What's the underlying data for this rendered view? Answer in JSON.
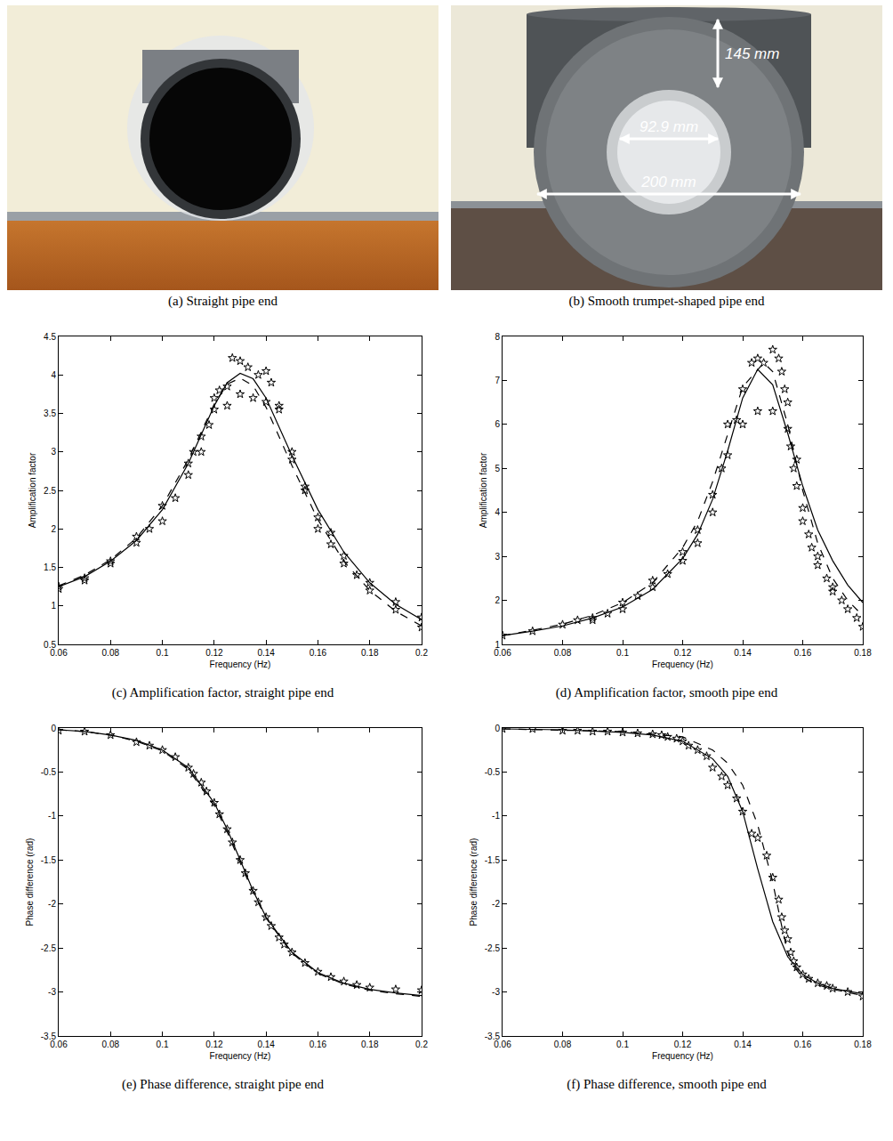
{
  "figure_panels": [
    {
      "caption": "(a) Straight pipe end"
    },
    {
      "caption": "(b) Smooth trumpet-shaped pipe end",
      "dimension_labels": [
        "145 mm",
        "92.9 mm",
        "200 mm"
      ]
    }
  ],
  "chart_data": [
    {
      "type": "line",
      "title": "(c) Amplification factor, straight pipe end",
      "x_label": "Frequency (Hz)",
      "y_label": "Amplification factor",
      "xlim": [
        0.06,
        0.2
      ],
      "xticks": [
        0.06,
        0.08,
        0.1,
        0.12,
        0.14,
        0.16,
        0.18,
        0.2
      ],
      "ylim": [
        0.5,
        4.5
      ],
      "yticks": [
        0.5,
        1,
        1.5,
        2,
        2.5,
        3,
        3.5,
        4,
        4.5
      ],
      "grid": false,
      "series": [
        {
          "type": "scatter",
          "marker": "star",
          "color": "#000000",
          "x": [
            0.06,
            0.06,
            0.07,
            0.07,
            0.08,
            0.08,
            0.09,
            0.09,
            0.095,
            0.1,
            0.1,
            0.105,
            0.11,
            0.11,
            0.112,
            0.115,
            0.115,
            0.118,
            0.12,
            0.12,
            0.122,
            0.125,
            0.125,
            0.127,
            0.13,
            0.13,
            0.133,
            0.135,
            0.137,
            0.14,
            0.14,
            0.142,
            0.145,
            0.145,
            0.15,
            0.15,
            0.155,
            0.155,
            0.16,
            0.16,
            0.165,
            0.165,
            0.17,
            0.17,
            0.175,
            0.18,
            0.18,
            0.19,
            0.19,
            0.2,
            0.2
          ],
          "values": [
            1.25,
            1.22,
            1.33,
            1.36,
            1.55,
            1.58,
            1.82,
            1.9,
            2.0,
            2.1,
            2.3,
            2.4,
            2.7,
            2.85,
            3.0,
            3.0,
            3.2,
            3.35,
            3.55,
            3.7,
            3.8,
            3.85,
            3.6,
            4.22,
            4.18,
            3.75,
            4.1,
            3.7,
            4.0,
            3.65,
            4.05,
            3.9,
            3.55,
            3.6,
            3.0,
            2.9,
            2.55,
            2.5,
            2.15,
            2.0,
            1.8,
            1.95,
            1.65,
            1.55,
            1.4,
            1.3,
            1.2,
            1.05,
            0.95,
            0.85,
            0.72
          ]
        },
        {
          "type": "line",
          "line_style": "solid",
          "color": "#000000",
          "x": [
            0.06,
            0.07,
            0.08,
            0.09,
            0.1,
            0.11,
            0.12,
            0.125,
            0.13,
            0.135,
            0.14,
            0.15,
            0.16,
            0.17,
            0.18,
            0.19,
            0.2
          ],
          "values": [
            1.25,
            1.38,
            1.58,
            1.85,
            2.25,
            2.85,
            3.6,
            3.9,
            4.02,
            3.95,
            3.7,
            2.95,
            2.25,
            1.7,
            1.3,
            1.02,
            0.82
          ]
        },
        {
          "type": "line",
          "line_style": "dashed",
          "color": "#000000",
          "x": [
            0.06,
            0.07,
            0.08,
            0.09,
            0.1,
            0.11,
            0.12,
            0.125,
            0.13,
            0.135,
            0.14,
            0.15,
            0.16,
            0.17,
            0.18,
            0.19,
            0.2
          ],
          "values": [
            1.26,
            1.4,
            1.6,
            1.88,
            2.3,
            2.9,
            3.62,
            3.88,
            3.96,
            3.86,
            3.58,
            2.82,
            2.12,
            1.58,
            1.2,
            0.93,
            0.74
          ]
        }
      ]
    },
    {
      "type": "line",
      "title": "(d) Amplification factor, smooth pipe end",
      "x_label": "Frequency (Hz)",
      "y_label": "Amplification factor",
      "xlim": [
        0.06,
        0.18
      ],
      "xticks": [
        0.06,
        0.08,
        0.1,
        0.12,
        0.14,
        0.16,
        0.18
      ],
      "ylim": [
        1,
        8
      ],
      "yticks": [
        1,
        2,
        3,
        4,
        5,
        6,
        7,
        8
      ],
      "grid": false,
      "series": [
        {
          "type": "scatter",
          "marker": "star",
          "color": "#000000",
          "x": [
            0.06,
            0.07,
            0.08,
            0.085,
            0.09,
            0.09,
            0.095,
            0.1,
            0.1,
            0.105,
            0.11,
            0.11,
            0.115,
            0.12,
            0.12,
            0.125,
            0.125,
            0.13,
            0.13,
            0.133,
            0.135,
            0.135,
            0.138,
            0.14,
            0.14,
            0.143,
            0.145,
            0.145,
            0.147,
            0.15,
            0.15,
            0.152,
            0.153,
            0.154,
            0.155,
            0.155,
            0.156,
            0.157,
            0.158,
            0.158,
            0.16,
            0.16,
            0.162,
            0.163,
            0.165,
            0.165,
            0.168,
            0.17,
            0.17,
            0.173,
            0.175,
            0.178,
            0.18
          ],
          "values": [
            1.2,
            1.3,
            1.45,
            1.55,
            1.6,
            1.55,
            1.7,
            1.8,
            1.95,
            2.1,
            2.3,
            2.45,
            2.6,
            2.9,
            3.1,
            3.3,
            3.6,
            4.0,
            4.4,
            5.0,
            5.3,
            6.0,
            6.1,
            6.8,
            6.0,
            7.4,
            6.3,
            7.5,
            7.4,
            6.3,
            7.7,
            7.5,
            7.2,
            6.8,
            6.5,
            5.9,
            5.5,
            5.0,
            4.6,
            5.2,
            4.1,
            3.8,
            3.5,
            3.2,
            3.0,
            2.8,
            2.5,
            2.3,
            2.2,
            2.0,
            1.8,
            1.6,
            1.4
          ]
        },
        {
          "type": "line",
          "line_style": "solid",
          "color": "#000000",
          "x": [
            0.06,
            0.07,
            0.08,
            0.09,
            0.1,
            0.11,
            0.12,
            0.125,
            0.13,
            0.135,
            0.14,
            0.145,
            0.15,
            0.155,
            0.16,
            0.165,
            0.17,
            0.175,
            0.18
          ],
          "values": [
            1.2,
            1.3,
            1.42,
            1.6,
            1.85,
            2.25,
            2.95,
            3.5,
            4.3,
            5.4,
            6.6,
            7.25,
            6.9,
            5.8,
            4.6,
            3.6,
            2.9,
            2.35,
            1.95
          ]
        },
        {
          "type": "line",
          "line_style": "dashed",
          "color": "#000000",
          "x": [
            0.06,
            0.07,
            0.08,
            0.09,
            0.1,
            0.11,
            0.12,
            0.125,
            0.13,
            0.135,
            0.14,
            0.147,
            0.15,
            0.155,
            0.16,
            0.165,
            0.17,
            0.175,
            0.18
          ],
          "values": [
            1.2,
            1.32,
            1.46,
            1.66,
            1.95,
            2.4,
            3.2,
            3.8,
            4.7,
            5.8,
            6.85,
            7.4,
            7.2,
            6.0,
            4.5,
            3.3,
            2.5,
            2.0,
            1.65
          ]
        }
      ]
    },
    {
      "type": "line",
      "title": "(e) Phase difference, straight pipe end",
      "x_label": "Frequency (Hz)",
      "y_label": "Phase difference (rad)",
      "xlim": [
        0.06,
        0.2
      ],
      "xticks": [
        0.06,
        0.08,
        0.1,
        0.12,
        0.14,
        0.16,
        0.18,
        0.2
      ],
      "ylim": [
        -3.5,
        0
      ],
      "yticks": [
        -3.5,
        -3,
        -2.5,
        -2,
        -1.5,
        -1,
        -0.5,
        0
      ],
      "grid": false,
      "series": [
        {
          "type": "scatter",
          "marker": "star",
          "color": "#000000",
          "x": [
            0.06,
            0.07,
            0.08,
            0.09,
            0.095,
            0.1,
            0.105,
            0.11,
            0.112,
            0.115,
            0.117,
            0.12,
            0.122,
            0.125,
            0.127,
            0.13,
            0.132,
            0.135,
            0.137,
            0.14,
            0.142,
            0.145,
            0.147,
            0.15,
            0.155,
            0.16,
            0.165,
            0.17,
            0.175,
            0.18,
            0.19,
            0.2
          ],
          "values": [
            -0.03,
            -0.04,
            -0.08,
            -0.16,
            -0.2,
            -0.25,
            -0.33,
            -0.45,
            -0.52,
            -0.62,
            -0.72,
            -0.85,
            -0.98,
            -1.15,
            -1.3,
            -1.5,
            -1.65,
            -1.85,
            -1.98,
            -2.15,
            -2.25,
            -2.38,
            -2.46,
            -2.55,
            -2.67,
            -2.77,
            -2.83,
            -2.88,
            -2.92,
            -2.95,
            -2.97,
            -2.98
          ]
        },
        {
          "type": "line",
          "line_style": "solid",
          "color": "#000000",
          "x": [
            0.06,
            0.07,
            0.08,
            0.09,
            0.1,
            0.11,
            0.12,
            0.125,
            0.13,
            0.135,
            0.14,
            0.15,
            0.16,
            0.17,
            0.18,
            0.19,
            0.2
          ],
          "values": [
            -0.02,
            -0.04,
            -0.08,
            -0.14,
            -0.25,
            -0.45,
            -0.85,
            -1.15,
            -1.5,
            -1.85,
            -2.15,
            -2.55,
            -2.78,
            -2.9,
            -2.97,
            -3.01,
            -3.04
          ]
        },
        {
          "type": "line",
          "line_style": "dashed",
          "color": "#000000",
          "x": [
            0.06,
            0.07,
            0.08,
            0.09,
            0.1,
            0.11,
            0.12,
            0.125,
            0.13,
            0.135,
            0.14,
            0.15,
            0.16,
            0.17,
            0.18,
            0.19,
            0.2
          ],
          "values": [
            -0.02,
            -0.04,
            -0.08,
            -0.15,
            -0.26,
            -0.47,
            -0.88,
            -1.18,
            -1.53,
            -1.87,
            -2.16,
            -2.56,
            -2.79,
            -2.91,
            -2.98,
            -3.02,
            -3.05
          ]
        }
      ]
    },
    {
      "type": "line",
      "title": "(f) Phase difference, smooth pipe end",
      "x_label": "Frequency (Hz)",
      "y_label": "Phase difference (rad)",
      "xlim": [
        0.06,
        0.18
      ],
      "xticks": [
        0.06,
        0.08,
        0.1,
        0.12,
        0.14,
        0.16,
        0.18
      ],
      "ylim": [
        -3.5,
        0
      ],
      "yticks": [
        -3.5,
        -3,
        -2.5,
        -2,
        -1.5,
        -1,
        -0.5,
        0
      ],
      "grid": false,
      "series": [
        {
          "type": "scatter",
          "marker": "star",
          "color": "#000000",
          "x": [
            0.06,
            0.07,
            0.08,
            0.085,
            0.09,
            0.095,
            0.1,
            0.105,
            0.11,
            0.113,
            0.115,
            0.118,
            0.12,
            0.122,
            0.125,
            0.128,
            0.13,
            0.133,
            0.135,
            0.138,
            0.14,
            0.143,
            0.145,
            0.148,
            0.15,
            0.152,
            0.153,
            0.154,
            0.155,
            0.156,
            0.157,
            0.158,
            0.16,
            0.162,
            0.165,
            0.168,
            0.17,
            0.175,
            0.18
          ],
          "values": [
            -0.01,
            -0.01,
            -0.03,
            -0.03,
            -0.04,
            -0.04,
            -0.05,
            -0.06,
            -0.07,
            -0.08,
            -0.1,
            -0.12,
            -0.15,
            -0.2,
            -0.25,
            -0.32,
            -0.45,
            -0.55,
            -0.65,
            -0.8,
            -0.95,
            -1.2,
            -1.25,
            -1.45,
            -1.7,
            -1.95,
            -2.15,
            -2.3,
            -2.4,
            -2.55,
            -2.65,
            -2.72,
            -2.8,
            -2.85,
            -2.9,
            -2.93,
            -2.96,
            -3.0,
            -3.05
          ]
        },
        {
          "type": "line",
          "line_style": "solid",
          "color": "#000000",
          "x": [
            0.06,
            0.08,
            0.1,
            0.11,
            0.12,
            0.13,
            0.135,
            0.14,
            0.145,
            0.15,
            0.155,
            0.16,
            0.165,
            0.17,
            0.18
          ],
          "values": [
            -0.01,
            -0.02,
            -0.05,
            -0.08,
            -0.15,
            -0.35,
            -0.55,
            -0.95,
            -1.6,
            -2.2,
            -2.6,
            -2.8,
            -2.9,
            -2.96,
            -3.02
          ]
        },
        {
          "type": "line",
          "line_style": "dashed",
          "color": "#000000",
          "x": [
            0.06,
            0.1,
            0.12,
            0.13,
            0.135,
            0.14,
            0.145,
            0.15,
            0.153,
            0.155,
            0.158,
            0.16,
            0.165,
            0.17,
            0.18
          ],
          "values": [
            -0.01,
            -0.04,
            -0.1,
            -0.25,
            -0.4,
            -0.65,
            -1.1,
            -1.75,
            -2.25,
            -2.55,
            -2.75,
            -2.83,
            -2.92,
            -2.97,
            -3.04
          ]
        }
      ]
    }
  ]
}
